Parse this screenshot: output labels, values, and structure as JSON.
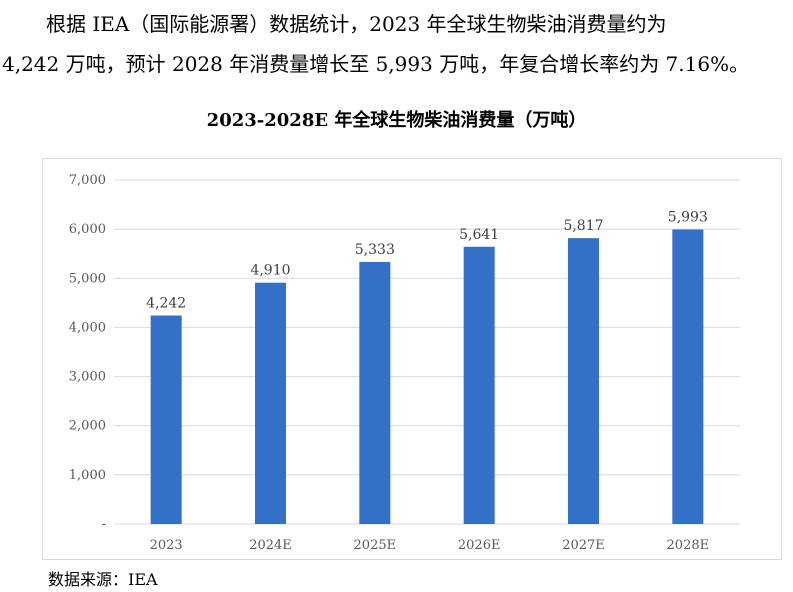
{
  "paragraph": {
    "line1": "根据 IEA（国际能源署）数据统计，2023 年全球生物柴油消费量约为",
    "line2": "4,242 万吨，预计 2028 年消费量增长至 5,993 万吨，年复合增长率约为 7.16%。"
  },
  "source": "数据来源：IEA",
  "colors": {
    "bar": "#3370c8",
    "grid": "#d9d9d9"
  },
  "chart_data": {
    "type": "bar",
    "title": "2023-2028E 年全球生物柴油消费量（万吨）",
    "categories": [
      "2023",
      "2024E",
      "2025E",
      "2026E",
      "2027E",
      "2028E"
    ],
    "values": [
      4242,
      4910,
      5333,
      5641,
      5817,
      5993
    ],
    "data_labels": [
      "4,242",
      "4,910",
      "5,333",
      "5,641",
      "5,817",
      "5,993"
    ],
    "yticks": [
      0,
      1000,
      2000,
      3000,
      4000,
      5000,
      6000,
      7000
    ],
    "ytick_labels": [
      "-",
      "1,000",
      "2,000",
      "3,000",
      "4,000",
      "5,000",
      "6,000",
      "7,000"
    ],
    "ylim": [
      0,
      7000
    ],
    "grid": true,
    "legend": "none",
    "xlabel": "",
    "ylabel": ""
  }
}
